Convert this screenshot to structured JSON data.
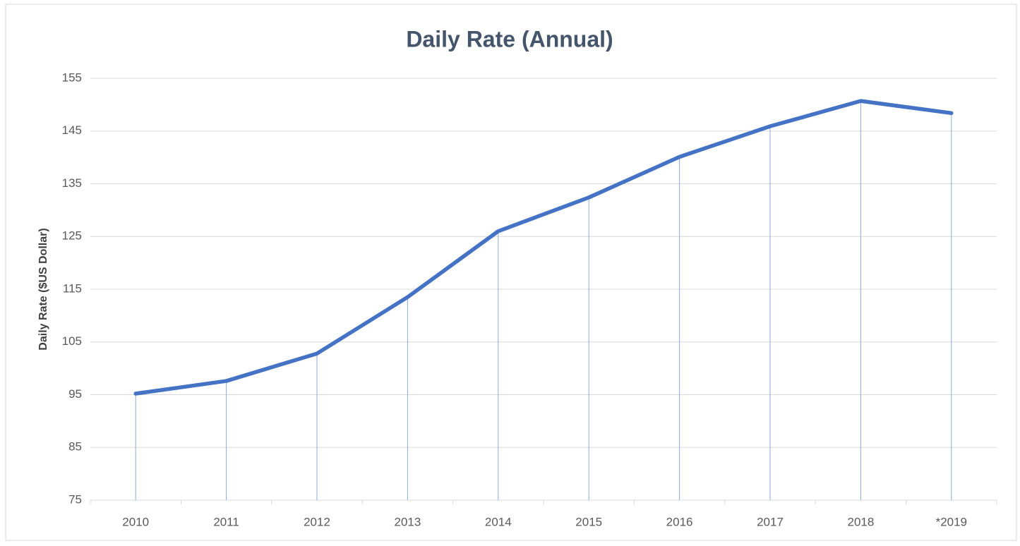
{
  "chart_data": {
    "type": "line",
    "title": "Daily Rate (Annual)",
    "y_label": "Daily Rate ($US Dollar)",
    "categories": [
      "2010",
      "2011",
      "2012",
      "2013",
      "2014",
      "2015",
      "2016",
      "2017",
      "2018",
      "*2019"
    ],
    "series": [
      {
        "name": "Daily Rate",
        "color": "#4472c4",
        "values": [
          95.2,
          97.6,
          102.8,
          113.5,
          126,
          132.4,
          140.1,
          145.9,
          150.7,
          148.4
        ]
      }
    ],
    "ylim": [
      75,
      155
    ],
    "yticks": [
      75,
      85,
      95,
      105,
      115,
      125,
      135,
      145,
      155
    ],
    "grid": true,
    "drop_lines": true
  }
}
